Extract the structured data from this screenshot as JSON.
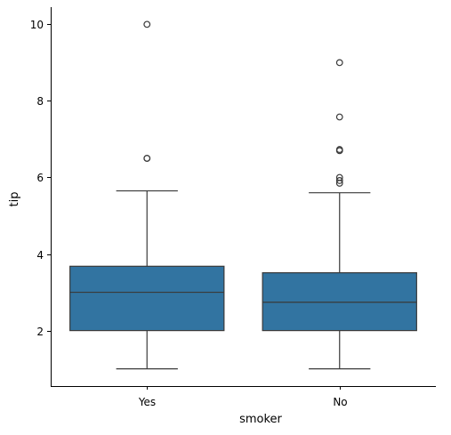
{
  "chart_data": {
    "type": "box",
    "xlabel": "smoker",
    "ylabel": "tip",
    "categories": [
      "Yes",
      "No"
    ],
    "ylim": [
      0.55,
      10.45
    ],
    "yticks": [
      2,
      4,
      6,
      8,
      10
    ],
    "yticklabels": [
      "2",
      "4",
      "6",
      "8",
      "10"
    ],
    "box_color": "#3274a1",
    "line_color": "#3a3a3a",
    "boxes": [
      {
        "category": "Yes",
        "whisker_low": 1.0,
        "q1": 2.0,
        "median": 3.0,
        "q3": 3.68,
        "whisker_high": 5.65,
        "outliers": [
          6.5,
          6.5,
          10.0
        ]
      },
      {
        "category": "No",
        "whisker_low": 1.0,
        "q1": 2.0,
        "median": 2.74,
        "q3": 3.51,
        "whisker_high": 5.6,
        "outliers": [
          5.85,
          5.92,
          6.0,
          6.7,
          6.73,
          7.58,
          9.0
        ]
      }
    ],
    "grid": false,
    "legend": "none"
  }
}
